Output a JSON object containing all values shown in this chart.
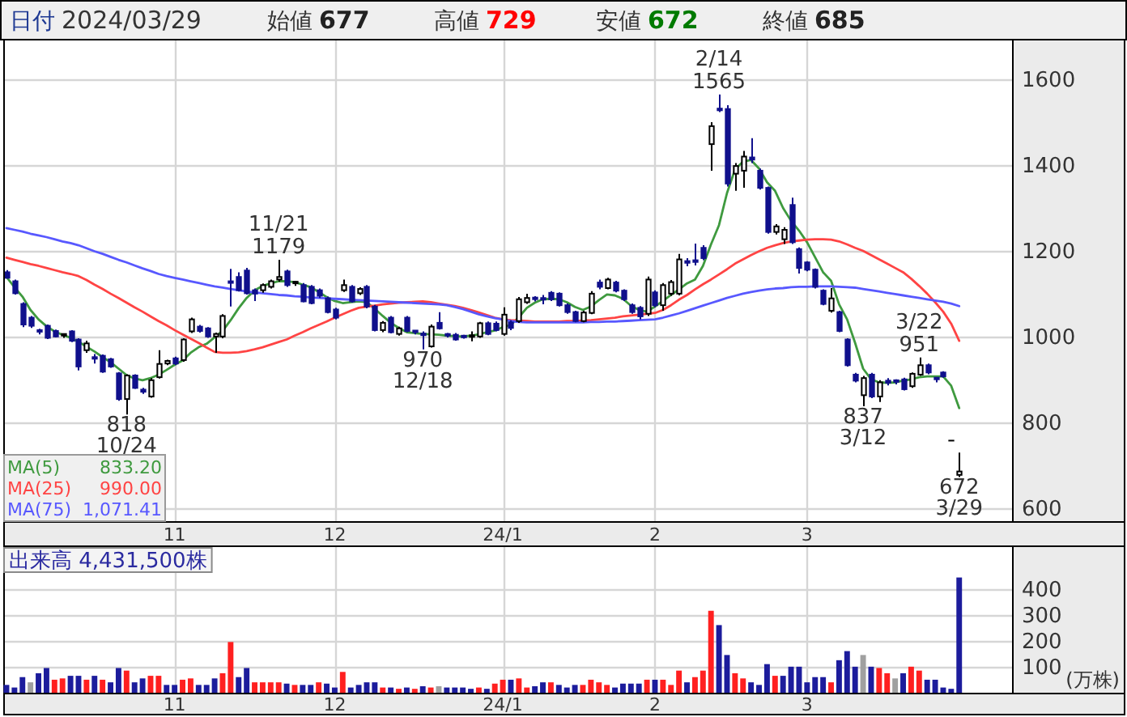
{
  "chart_data": [
    {
      "type": "other",
      "annotations": [
        "日付",
        "2024/03/29",
        "始値",
        "677",
        "高値",
        "729",
        "安値",
        "672",
        "終値",
        "685"
      ],
      "colors": [
        "#1f3a93",
        "#333333",
        "#333333",
        "#222222",
        "#333333",
        "#ff0000",
        "#333333",
        "#007a00",
        "#333333",
        "#222222"
      ]
    },
    {
      "type": "candlestick",
      "categories": [
        null,
        null,
        null,
        null,
        null,
        null,
        null,
        null,
        null,
        null,
        null,
        null,
        null,
        null,
        null,
        null,
        null,
        null,
        null,
        null,
        null,
        "11",
        null,
        null,
        null,
        null,
        null,
        null,
        null,
        null,
        null,
        null,
        null,
        null,
        null,
        null,
        null,
        null,
        null,
        null,
        null,
        "12",
        null,
        null,
        null,
        null,
        null,
        null,
        null,
        null,
        null,
        null,
        null,
        null,
        null,
        null,
        null,
        null,
        null,
        null,
        null,
        null,
        "24/1",
        null,
        null,
        null,
        null,
        null,
        null,
        null,
        null,
        null,
        null,
        null,
        null,
        null,
        null,
        null,
        null,
        null,
        null,
        "2",
        null,
        null,
        null,
        null,
        null,
        null,
        null,
        null,
        null,
        null,
        null,
        null,
        null,
        null,
        null,
        null,
        null,
        null,
        "3",
        null,
        null,
        null,
        null,
        null,
        null,
        null,
        null,
        null,
        null,
        null,
        null,
        null,
        null,
        null,
        null,
        null,
        null,
        null
      ],
      "ohlc": [
        [
          1150,
          1155,
          1135,
          1137
        ],
        [
          1129,
          1133,
          1098,
          1101
        ],
        [
          1076,
          1080,
          1022,
          1028
        ],
        [
          1044,
          1048,
          1020,
          1025
        ],
        [
          1013,
          1018,
          1005,
          1010
        ],
        [
          1025,
          1028,
          994,
          997
        ],
        [
          1013,
          1016,
          998,
          1000
        ],
        [
          1002,
          1007,
          997,
          1004
        ],
        [
          1012,
          1015,
          987,
          990
        ],
        [
          993,
          996,
          921,
          930
        ],
        [
          968,
          990,
          962,
          984
        ],
        [
          950,
          959,
          937,
          948
        ],
        [
          955,
          958,
          915,
          918
        ],
        [
          947,
          950,
          927,
          930
        ],
        [
          914,
          917,
          850,
          854
        ],
        [
          854,
          912,
          818,
          909
        ],
        [
          909,
          912,
          878,
          880
        ],
        [
          876,
          880,
          866,
          871
        ],
        [
          860,
          903,
          857,
          898
        ],
        [
          905,
          968,
          902,
          936
        ],
        [
          937,
          946,
          933,
          943
        ],
        [
          949,
          953,
          933,
          937
        ],
        [
          945,
          996,
          941,
          993
        ],
        [
          1012,
          1044,
          1008,
          1040
        ],
        [
          1023,
          1027,
          1009,
          1013
        ],
        [
          1019,
          1022,
          997,
          1000
        ],
        [
          1000,
          1009,
          962,
          1006
        ],
        [
          1000,
          1052,
          996,
          1048
        ],
        [
          1127,
          1158,
          1070,
          1126
        ],
        [
          1139,
          1150,
          1105,
          1108
        ],
        [
          1154,
          1160,
          1098,
          1101
        ],
        [
          1108,
          1112,
          1083,
          1100
        ],
        [
          1108,
          1124,
          1102,
          1120
        ],
        [
          1116,
          1133,
          1112,
          1129
        ],
        [
          1133,
          1179,
          1128,
          1139
        ],
        [
          1152,
          1156,
          1116,
          1120
        ],
        [
          1124,
          1130,
          1118,
          1126
        ],
        [
          1120,
          1125,
          1080,
          1082
        ],
        [
          1116,
          1120,
          1075,
          1078
        ],
        [
          1108,
          1112,
          1090,
          1095
        ],
        [
          1089,
          1093,
          1054,
          1057
        ],
        [
          1063,
          1067,
          1040,
          1044
        ],
        [
          1108,
          1133,
          1104,
          1120
        ],
        [
          1116,
          1120,
          1079,
          1082
        ],
        [
          1101,
          1115,
          1097,
          1111
        ],
        [
          1116,
          1120,
          1066,
          1070
        ],
        [
          1070,
          1074,
          1012,
          1015
        ],
        [
          1015,
          1036,
          1010,
          1032
        ],
        [
          1044,
          1048,
          1007,
          1010
        ],
        [
          1006,
          1023,
          1002,
          1019
        ],
        [
          1044,
          1048,
          1010,
          1013
        ],
        [
          1012,
          1015,
          1005,
          1009
        ],
        [
          1005,
          1012,
          970,
          1003
        ],
        [
          977,
          1028,
          974,
          1023
        ],
        [
          1032,
          1057,
          1016,
          1019
        ],
        [
          1004,
          1008,
          998,
          1001
        ],
        [
          1004,
          1008,
          990,
          993
        ],
        [
          1000,
          1004,
          995,
          998
        ],
        [
          999,
          1012,
          989,
          1001
        ],
        [
          1000,
          1034,
          997,
          1031
        ],
        [
          1031,
          1035,
          1003,
          1006
        ],
        [
          1030,
          1035,
          1012,
          1015
        ],
        [
          1006,
          1068,
          1002,
          1051
        ],
        [
          1033,
          1038,
          1015,
          1020
        ],
        [
          1036,
          1092,
          1032,
          1087
        ],
        [
          1080,
          1100,
          1076,
          1090
        ],
        [
          1089,
          1094,
          1082,
          1086
        ],
        [
          1088,
          1097,
          1075,
          1085
        ],
        [
          1102,
          1106,
          1083,
          1087
        ],
        [
          1100,
          1103,
          1070,
          1073
        ],
        [
          1073,
          1077,
          1053,
          1057
        ],
        [
          1057,
          1060,
          1033,
          1036
        ],
        [
          1036,
          1060,
          1033,
          1056
        ],
        [
          1055,
          1106,
          1052,
          1100
        ],
        [
          1126,
          1133,
          1110,
          1116
        ],
        [
          1113,
          1137,
          1110,
          1133
        ],
        [
          1126,
          1130,
          1103,
          1107
        ],
        [
          1107,
          1110,
          1083,
          1087
        ],
        [
          1073,
          1077,
          1053,
          1057
        ],
        [
          1067,
          1071,
          1040,
          1047
        ],
        [
          1053,
          1140,
          1048,
          1133
        ],
        [
          1103,
          1108,
          1068,
          1073
        ],
        [
          1073,
          1125,
          1060,
          1120
        ],
        [
          1100,
          1132,
          1095,
          1127
        ],
        [
          1100,
          1193,
          1096,
          1180
        ],
        [
          1176,
          1183,
          1164,
          1172
        ],
        [
          1178,
          1217,
          1166,
          1174
        ],
        [
          1207,
          1213,
          1178,
          1183
        ],
        [
          1449,
          1500,
          1387,
          1491
        ],
        [
          1532,
          1565,
          1524,
          1528
        ],
        [
          1531,
          1540,
          1350,
          1357
        ],
        [
          1380,
          1405,
          1340,
          1398
        ],
        [
          1387,
          1433,
          1347,
          1420
        ],
        [
          1418,
          1463,
          1405,
          1413
        ],
        [
          1387,
          1392,
          1343,
          1347
        ],
        [
          1347,
          1350,
          1240,
          1244
        ],
        [
          1244,
          1262,
          1238,
          1257
        ],
        [
          1227,
          1255,
          1216,
          1249
        ],
        [
          1307,
          1324,
          1216,
          1220
        ],
        [
          1204,
          1208,
          1147,
          1160
        ],
        [
          1173,
          1176,
          1152,
          1156
        ],
        [
          1156,
          1159,
          1112,
          1116
        ],
        [
          1107,
          1110,
          1073,
          1076
        ],
        [
          1060,
          1113,
          1056,
          1089
        ],
        [
          1057,
          1060,
          1010,
          1013
        ],
        [
          993,
          996,
          930,
          933
        ],
        [
          911,
          915,
          893,
          897
        ],
        [
          863,
          908,
          837,
          903
        ],
        [
          911,
          915,
          856,
          860
        ],
        [
          860,
          898,
          847,
          893
        ],
        [
          897,
          903,
          886,
          892
        ],
        [
          896,
          900,
          888,
          894
        ],
        [
          900,
          904,
          874,
          877
        ],
        [
          884,
          916,
          880,
          913
        ],
        [
          911,
          951,
          908,
          933
        ],
        [
          933,
          937,
          912,
          916
        ],
        [
          902,
          905,
          893,
          900
        ],
        [
          916,
          919,
          904,
          907
        ],
        [
          757,
          757,
          757,
          757
        ],
        [
          677,
          729,
          672,
          685
        ]
      ],
      "colors": [
        "#10108c",
        "#10108c",
        "#10108c",
        "#10108c",
        "#10108c",
        "#10108c",
        "#10108c",
        "#000000",
        "#10108c",
        "#10108c",
        "#000000",
        "#10108c",
        "#10108c",
        "#10108c",
        "#10108c",
        "#000000",
        "#10108c",
        "#10108c",
        "#000000",
        "#000000",
        "#000000",
        "#10108c",
        "#000000",
        "#000000",
        "#10108c",
        "#10108c",
        "#000000",
        "#000000",
        "#10108c",
        "#10108c",
        "#10108c",
        "#10108c",
        "#000000",
        "#000000",
        "#000000",
        "#10108c",
        "#000000",
        "#10108c",
        "#10108c",
        "#10108c",
        "#10108c",
        "#10108c",
        "#000000",
        "#10108c",
        "#000000",
        "#10108c",
        "#10108c",
        "#000000",
        "#10108c",
        "#000000",
        "#10108c",
        "#10108c",
        "#10108c",
        "#000000",
        "#10108c",
        "#10108c",
        "#10108c",
        "#10108c",
        "#000000",
        "#000000",
        "#10108c",
        "#10108c",
        "#000000",
        "#10108c",
        "#000000",
        "#000000",
        "#10108c",
        "#10108c",
        "#10108c",
        "#10108c",
        "#10108c",
        "#10108c",
        "#000000",
        "#000000",
        "#10108c",
        "#000000",
        "#10108c",
        "#10108c",
        "#10108c",
        "#10108c",
        "#000000",
        "#10108c",
        "#000000",
        "#000000",
        "#000000",
        "#10108c",
        "#10108c",
        "#10108c",
        "#000000",
        "#10108c",
        "#10108c",
        "#000000",
        "#000000",
        "#10108c",
        "#10108c",
        "#10108c",
        "#000000",
        "#000000",
        "#10108c",
        "#10108c",
        "#10108c",
        "#10108c",
        "#10108c",
        "#000000",
        "#10108c",
        "#10108c",
        "#10108c",
        "#000000",
        "#10108c",
        "#000000",
        "#10108c",
        "#10108c",
        "#10108c",
        "#000000",
        "#000000",
        "#10108c",
        "#10108c",
        "#10108c",
        "#000000",
        "#000000"
      ],
      "series": [
        {
          "name": "MA(5)",
          "type": "line",
          "color": "#3f9a3f",
          "values": [
            1139,
            1115,
            1093,
            1062,
            1040,
            1024,
            1012,
            1004,
            997,
            988,
            976,
            965,
            952,
            940,
            925,
            910,
            902,
            898,
            903,
            911,
            922,
            934,
            944,
            962,
            975,
            983,
            998,
            1013,
            1038,
            1066,
            1090,
            1108,
            1118,
            1124,
            1129,
            1129,
            1127,
            1121,
            1115,
            1104,
            1092,
            1083,
            1078,
            1080,
            1082,
            1080,
            1065,
            1048,
            1032,
            1020,
            1010,
            1008,
            1006,
            1005,
            1004,
            1002,
            1001,
            1000,
            1002,
            1005,
            1010,
            1014,
            1022,
            1027,
            1045,
            1067,
            1079,
            1087,
            1088,
            1087,
            1080,
            1069,
            1062,
            1070,
            1085,
            1098,
            1096,
            1088,
            1072,
            1062,
            1058,
            1070,
            1083,
            1097,
            1110,
            1124,
            1133,
            1165,
            1215,
            1260,
            1335,
            1390,
            1408,
            1412,
            1392,
            1360,
            1340,
            1300,
            1270,
            1247,
            1220,
            1185,
            1150,
            1130,
            1075,
            1040,
            985,
            925,
            900,
            893,
            892,
            893,
            897,
            900,
            905,
            907,
            907,
            907,
            885,
            833
          ]
        },
        {
          "name": "MA(25)",
          "type": "line",
          "color": "#ff4444",
          "values": [
            1184,
            1179,
            1174,
            1169,
            1165,
            1160,
            1155,
            1150,
            1146,
            1141,
            1132,
            1121,
            1111,
            1100,
            1090,
            1079,
            1068,
            1058,
            1047,
            1036,
            1026,
            1015,
            1005,
            995,
            985,
            974,
            964,
            962,
            962,
            963,
            966,
            970,
            975,
            981,
            987,
            993,
            1002,
            1010,
            1019,
            1027,
            1035,
            1044,
            1052,
            1060,
            1067,
            1070,
            1072,
            1075,
            1077,
            1079,
            1080,
            1081,
            1082,
            1080,
            1077,
            1074,
            1071,
            1067,
            1062,
            1056,
            1050,
            1044,
            1040,
            1038,
            1037,
            1036,
            1035,
            1035,
            1035,
            1035,
            1036,
            1036,
            1037,
            1038,
            1040,
            1042,
            1044,
            1047,
            1049,
            1051,
            1053,
            1055,
            1062,
            1073,
            1086,
            1097,
            1110,
            1122,
            1133,
            1145,
            1157,
            1170,
            1180,
            1190,
            1199,
            1207,
            1213,
            1218,
            1222,
            1224,
            1226,
            1227,
            1227,
            1226,
            1222,
            1215,
            1207,
            1200,
            1190,
            1180,
            1170,
            1160,
            1150,
            1135,
            1118,
            1100,
            1080,
            1058,
            1030,
            990
          ]
        },
        {
          "name": "MA(75)",
          "type": "line",
          "color": "#5858ff",
          "values": [
            1253,
            1249,
            1245,
            1240,
            1236,
            1232,
            1227,
            1222,
            1218,
            1213,
            1206,
            1199,
            1193,
            1186,
            1179,
            1173,
            1166,
            1159,
            1153,
            1146,
            1141,
            1137,
            1133,
            1129,
            1125,
            1121,
            1117,
            1114,
            1111,
            1108,
            1105,
            1103,
            1101,
            1099,
            1097,
            1096,
            1094,
            1093,
            1091,
            1090,
            1089,
            1088,
            1087,
            1086,
            1085,
            1084,
            1083,
            1082,
            1081,
            1080,
            1079,
            1078,
            1077,
            1076,
            1075,
            1073,
            1069,
            1064,
            1058,
            1052,
            1047,
            1043,
            1040,
            1036,
            1034,
            1033,
            1033,
            1033,
            1033,
            1033,
            1033,
            1033,
            1033,
            1034,
            1034,
            1035,
            1035,
            1036,
            1037,
            1038,
            1039,
            1040,
            1044,
            1049,
            1054,
            1060,
            1066,
            1072,
            1078,
            1084,
            1090,
            1095,
            1100,
            1104,
            1107,
            1110,
            1112,
            1113,
            1115,
            1116,
            1116,
            1117,
            1117,
            1117,
            1116,
            1115,
            1114,
            1111,
            1108,
            1105,
            1102,
            1099,
            1096,
            1093,
            1090,
            1087,
            1084,
            1081,
            1077,
            1071
          ]
        }
      ],
      "ylim": [
        569,
        1691
      ],
      "yticks": [
        600,
        800,
        1000,
        1200,
        1400,
        1600
      ],
      "grid": true,
      "legend": "bottom left",
      "annotations": [
        {
          "text": "11/21\n1179",
          "y": 1179
        },
        {
          "text": "818\n10/24",
          "y": 818
        },
        {
          "text": "970\n12/18",
          "y": 970
        },
        {
          "text": "2/14\n1565",
          "y": 1565
        },
        {
          "text": "837\n3/12",
          "y": 837
        },
        {
          "text": "3/22\n951",
          "y": 951
        },
        {
          "text": "672\n3/29",
          "y": 672
        },
        "833.20",
        "990.00",
        "1,071.41"
      ]
    },
    {
      "type": "bar",
      "title": "出来高 4,431,500株",
      "ylabel": "(万株)",
      "categories": [
        null,
        null,
        null,
        null,
        null,
        null,
        null,
        null,
        null,
        null,
        null,
        null,
        null,
        null,
        null,
        null,
        null,
        null,
        null,
        null,
        null,
        "11",
        null,
        null,
        null,
        null,
        null,
        null,
        null,
        null,
        null,
        null,
        null,
        null,
        null,
        null,
        null,
        null,
        null,
        null,
        null,
        "12",
        null,
        null,
        null,
        null,
        null,
        null,
        null,
        null,
        null,
        null,
        null,
        null,
        null,
        null,
        null,
        null,
        null,
        null,
        null,
        null,
        "24/1",
        null,
        null,
        null,
        null,
        null,
        null,
        null,
        null,
        null,
        null,
        null,
        null,
        null,
        null,
        null,
        null,
        null,
        null,
        "2",
        null,
        null,
        null,
        null,
        null,
        null,
        null,
        null,
        null,
        null,
        null,
        null,
        null,
        null,
        null,
        null,
        null,
        null,
        "3",
        null,
        null,
        null,
        null,
        null,
        null,
        null,
        null,
        null,
        null,
        null,
        null,
        null,
        null,
        null,
        null,
        null,
        null,
        null
      ],
      "values": [
        30,
        20,
        60,
        40,
        75,
        95,
        50,
        55,
        65,
        65,
        50,
        65,
        50,
        40,
        95,
        85,
        40,
        55,
        65,
        65,
        30,
        30,
        50,
        55,
        30,
        30,
        55,
        75,
        195,
        60,
        95,
        40,
        40,
        40,
        40,
        35,
        30,
        30,
        30,
        40,
        35,
        20,
        80,
        20,
        30,
        40,
        40,
        20,
        20,
        15,
        20,
        15,
        25,
        20,
        25,
        20,
        20,
        20,
        15,
        20,
        15,
        35,
        50,
        50,
        55,
        20,
        25,
        40,
        40,
        30,
        20,
        30,
        30,
        50,
        40,
        30,
        20,
        35,
        35,
        35,
        50,
        50,
        50,
        30,
        85,
        40,
        60,
        85,
        315,
        260,
        145,
        75,
        55,
        40,
        30,
        110,
        65,
        65,
        100,
        100,
        40,
        60,
        60,
        40,
        125,
        160,
        100,
        145,
        100,
        95,
        75,
        55,
        75,
        100,
        85,
        50,
        50,
        20,
        15,
        443
      ],
      "colors": [
        "#1c1c9c",
        "#1c1c9c",
        "#1c1c9c",
        "#a0a0a0",
        "#1c1c9c",
        "#1c1c9c",
        "#ff2020",
        "#ff2020",
        "#1c1c9c",
        "#1c1c9c",
        "#ff2020",
        "#1c1c9c",
        "#ff2020",
        "#1c1c9c",
        "#1c1c9c",
        "#ff2020",
        "#1c1c9c",
        "#1c1c9c",
        "#ff2020",
        "#ff2020",
        "#1c1c9c",
        "#1c1c9c",
        "#ff2020",
        "#ff2020",
        "#1c1c9c",
        "#1c1c9c",
        "#1c1c9c",
        "#ff2020",
        "#ff2020",
        "#1c1c9c",
        "#1c1c9c",
        "#ff2020",
        "#ff2020",
        "#ff2020",
        "#ff2020",
        "#1c1c9c",
        "#ff2020",
        "#1c1c9c",
        "#1c1c9c",
        "#ff2020",
        "#1c1c9c",
        "#1c1c9c",
        "#ff2020",
        "#1c1c9c",
        "#1c1c9c",
        "#1c1c9c",
        "#1c1c9c",
        "#ff2020",
        "#1c1c9c",
        "#ff2020",
        "#1c1c9c",
        "#ff2020",
        "#1c1c9c",
        "#ff2020",
        "#a0a0a0",
        "#1c1c9c",
        "#1c1c9c",
        "#1c1c9c",
        "#1c1c9c",
        "#ff2020",
        "#1c1c9c",
        "#ff2020",
        "#ff2020",
        "#1c1c9c",
        "#ff2020",
        "#ff2020",
        "#1c1c9c",
        "#1c1c9c",
        "#ff2020",
        "#1c1c9c",
        "#1c1c9c",
        "#1c1c9c",
        "#ff2020",
        "#ff2020",
        "#ff2020",
        "#ff2020",
        "#1c1c9c",
        "#1c1c9c",
        "#1c1c9c",
        "#1c1c9c",
        "#ff2020",
        "#1c1c9c",
        "#ff2020",
        "#ff2020",
        "#ff2020",
        "#1c1c9c",
        "#ff2020",
        "#ff2020",
        "#ff2020",
        "#1c1c9c",
        "#1c1c9c",
        "#ff2020",
        "#ff2020",
        "#1c1c9c",
        "#1c1c9c",
        "#1c1c9c",
        "#ff2020",
        "#1c1c9c",
        "#1c1c9c",
        "#1c1c9c",
        "#1c1c9c",
        "#1c1c9c",
        "#1c1c9c",
        "#ff2020",
        "#1c1c9c",
        "#1c1c9c",
        "#1c1c9c",
        "#a0a0a0",
        "#1c1c9c",
        "#ff2020",
        "#ff2020",
        "#a0a0a0",
        "#1c1c9c",
        "#ff2020",
        "#ff2020",
        "#1c1c9c",
        "#1c1c9c",
        "#1c1c9c",
        "#1c1c9c",
        "#1c1c9c"
      ],
      "ylim": [
        0,
        560
      ],
      "yticks": [
        100,
        200,
        300,
        400
      ],
      "grid": true
    }
  ]
}
